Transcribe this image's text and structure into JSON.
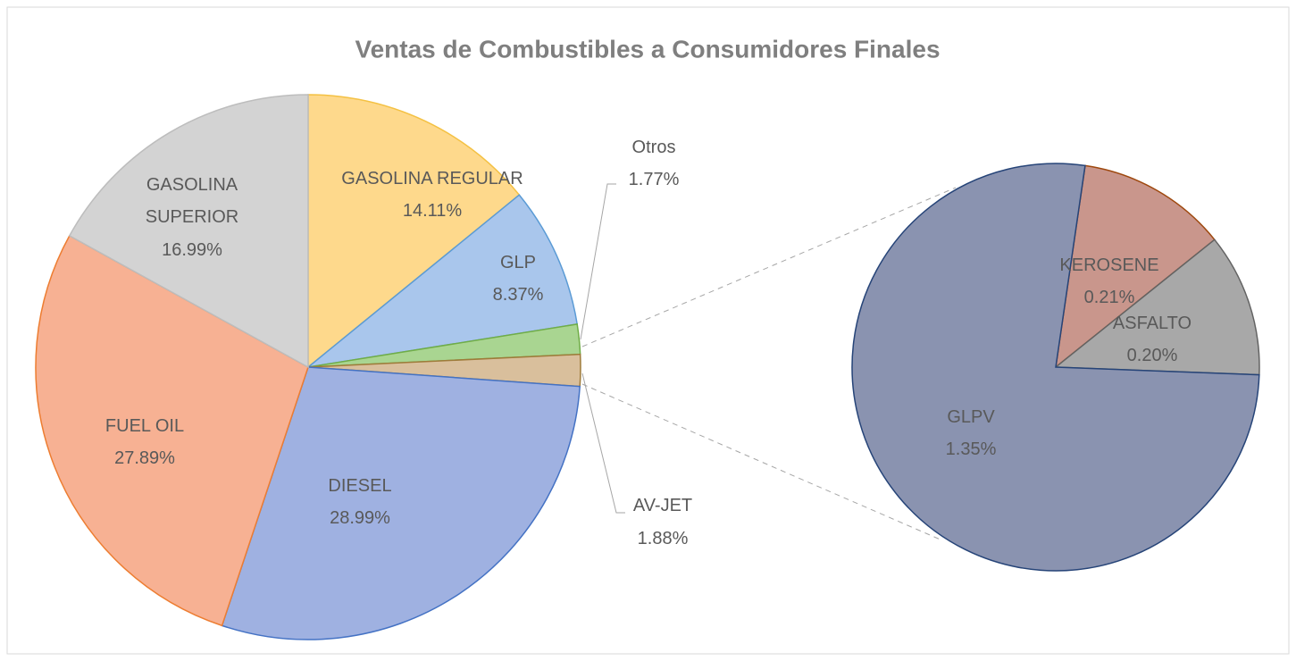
{
  "chart_data": [
    {
      "type": "pie",
      "title": "Ventas de Combustibles a Consumidores Finales",
      "categories": [
        "GASOLINA REGULAR",
        "GLP",
        "Otros",
        "AV-JET",
        "DIESEL",
        "FUEL OIL",
        "GASOLINA SUPERIOR"
      ],
      "values": [
        14.11,
        8.37,
        1.77,
        1.88,
        28.99,
        27.89,
        16.99
      ],
      "value_labels": [
        "14.11%",
        "8.37%",
        "1.77%",
        "1.88%",
        "28.99%",
        "27.89%",
        "16.99%"
      ],
      "colors": [
        "#fed98c",
        "#a9c6ec",
        "#a9d591",
        "#d9bf9c",
        "#9fb1e1",
        "#f7b193",
        "#d3d3d3"
      ],
      "edge_colors": [
        "#f4c143",
        "#5b9bd5",
        "#70ad47",
        "#9e7b3a",
        "#4472c4",
        "#ed7d31",
        "#bdbdbd"
      ]
    },
    {
      "type": "pie",
      "categories": [
        "KEROSENE",
        "ASFALTO",
        "GLPV"
      ],
      "values": [
        0.21,
        0.2,
        1.35
      ],
      "value_labels": [
        "0.21%",
        "0.20%",
        "1.35%"
      ],
      "colors": [
        "#c9968c",
        "#a8a8a8",
        "#8a93b0"
      ],
      "edge_colors": [
        "#9e480e",
        "#636363",
        "#264478"
      ]
    }
  ]
}
